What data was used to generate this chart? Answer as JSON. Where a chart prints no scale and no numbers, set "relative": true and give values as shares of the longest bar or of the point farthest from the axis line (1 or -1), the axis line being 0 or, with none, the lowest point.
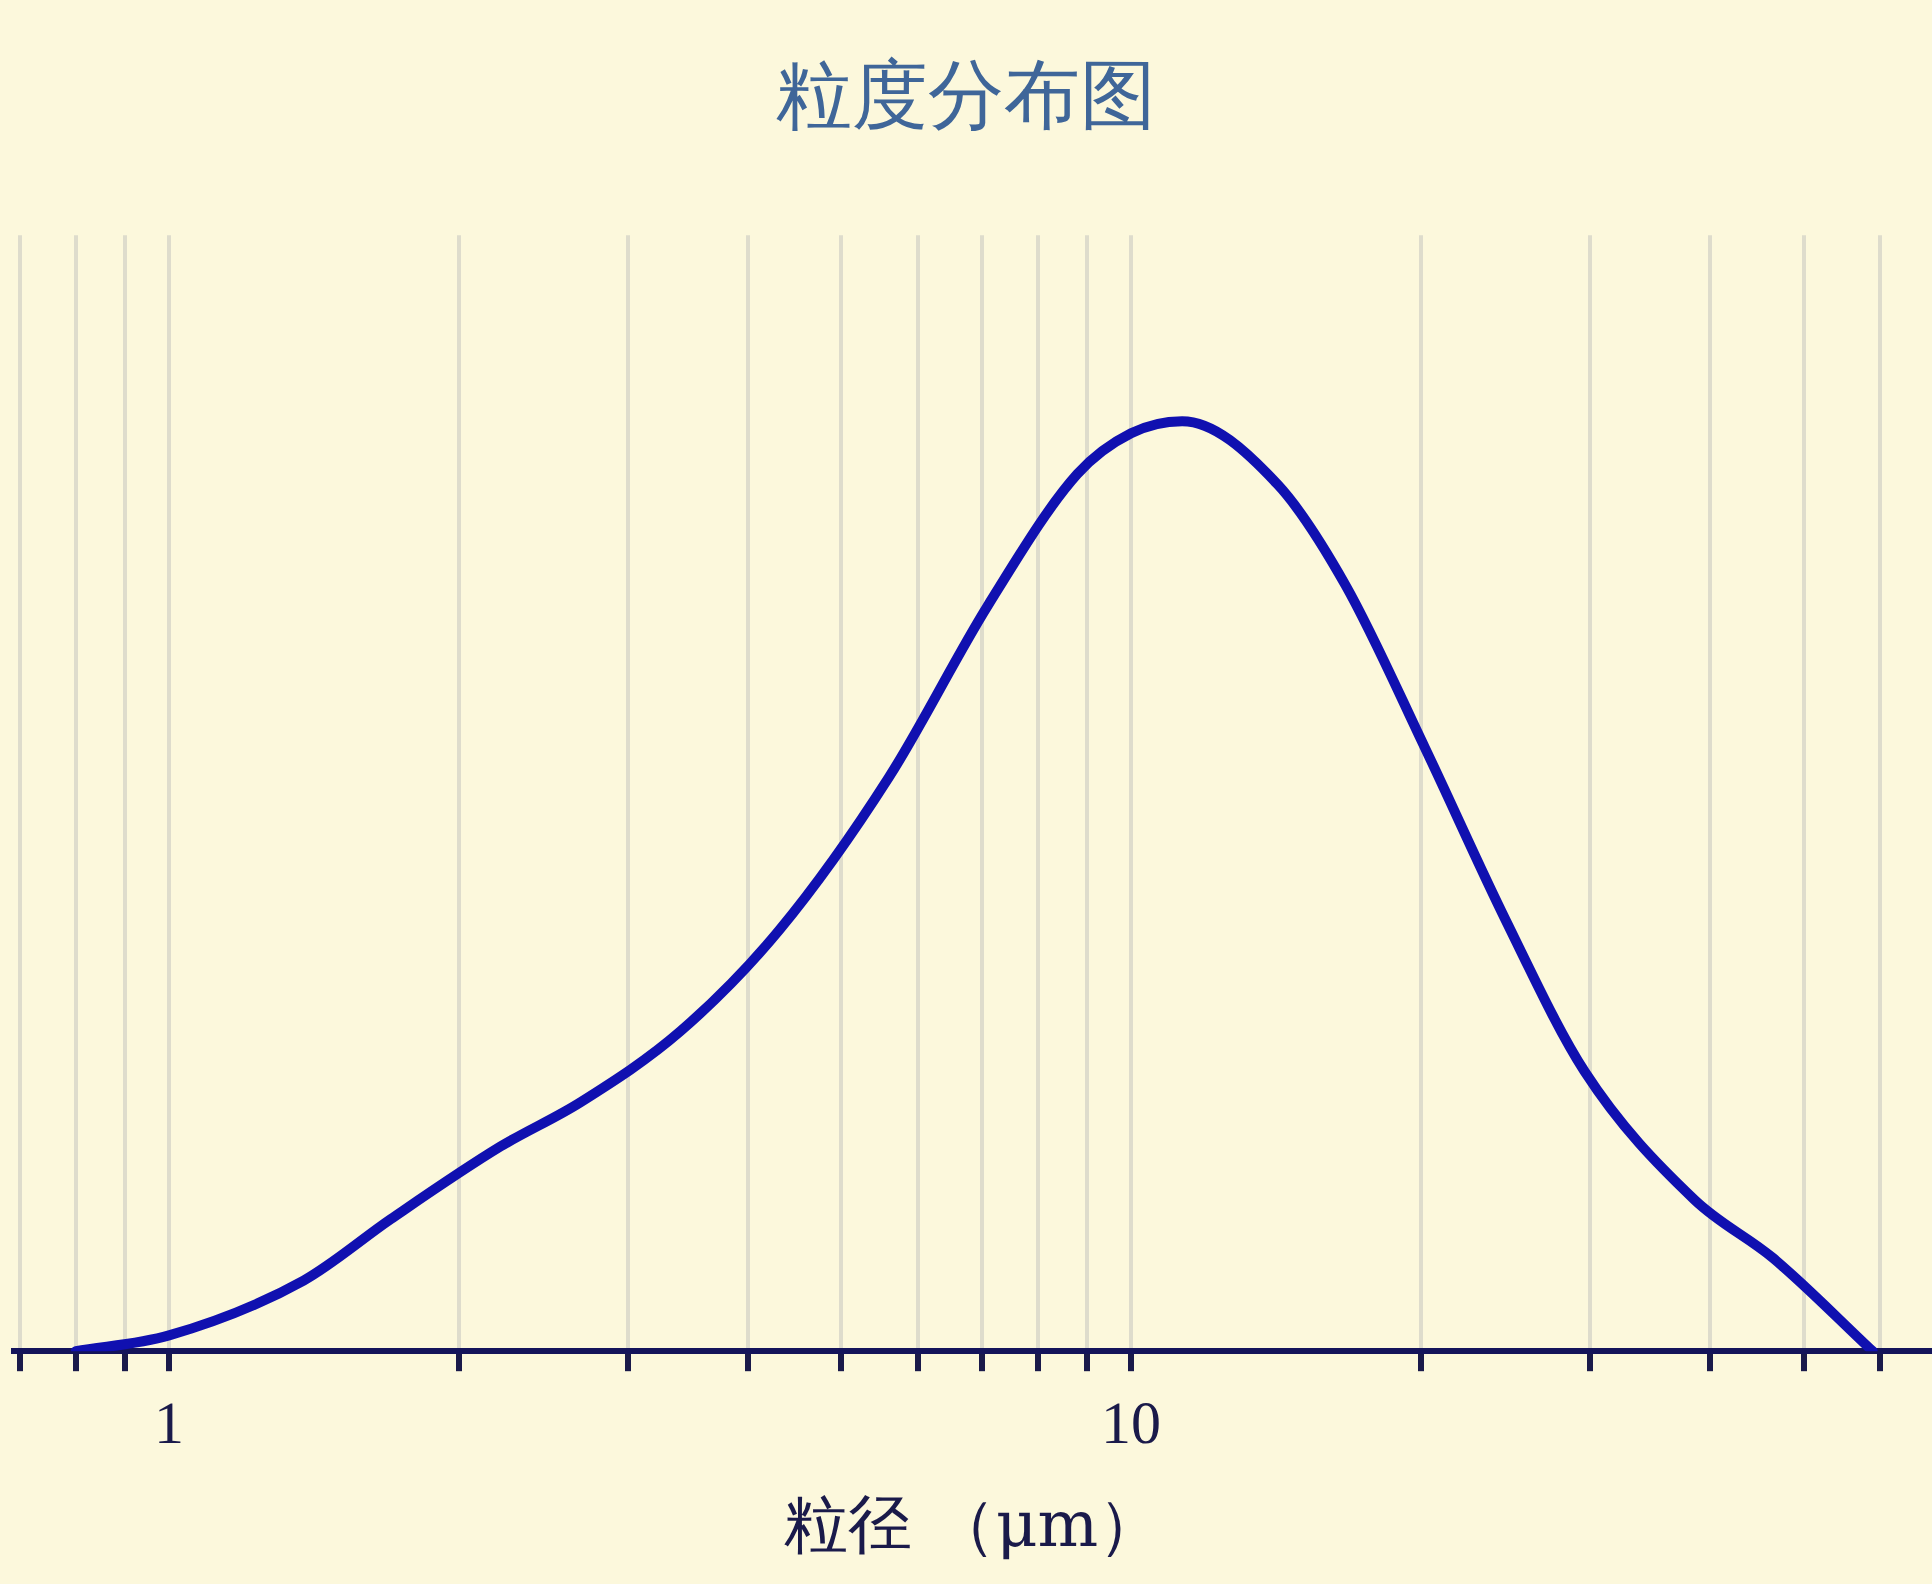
{
  "chart_data": {
    "type": "line",
    "title": "粒度分布图",
    "xlabel": "粒径 （μm）",
    "relative": true,
    "log": "x",
    "grid": "x",
    "marker": "none",
    "line_style": "solid",
    "xlim": [
      0.69,
      68
    ],
    "xticks": [
      {
        "value": 0.7,
        "label": null
      },
      {
        "value": 0.8,
        "label": null
      },
      {
        "value": 0.9,
        "label": null
      },
      1,
      {
        "value": 2,
        "label": null
      },
      {
        "value": 3,
        "label": null
      },
      {
        "value": 4,
        "label": null
      },
      {
        "value": 5,
        "label": null
      },
      {
        "value": 6,
        "label": null
      },
      {
        "value": 7,
        "label": null
      },
      {
        "value": 8,
        "label": null
      },
      {
        "value": 9,
        "label": null
      },
      10,
      {
        "value": 20,
        "label": null
      },
      {
        "value": 30,
        "label": null
      },
      {
        "value": 40,
        "label": null
      },
      {
        "value": 50,
        "label": null
      },
      {
        "value": 60,
        "label": null
      }
    ],
    "x": [
      0.8,
      1,
      1.38,
      1.7,
      2.21,
      2.68,
      3.4,
      4.31,
      5.6,
      7.1,
      8.79,
      10,
      11.3,
      14.2,
      16.7,
      20.2,
      24.5,
      29.6,
      38.5,
      46.5,
      59
    ],
    "series": [
      {
        "color": "#1010b0",
        "values": [
          0,
          0.017,
          0.076,
          0.142,
          0.22,
          0.268,
          0.344,
          0.453,
          0.617,
          0.802,
          0.943,
          0.987,
          1,
          0.932,
          0.824,
          0.649,
          0.464,
          0.301,
          0.163,
          0.1,
          0
        ]
      }
    ]
  }
}
